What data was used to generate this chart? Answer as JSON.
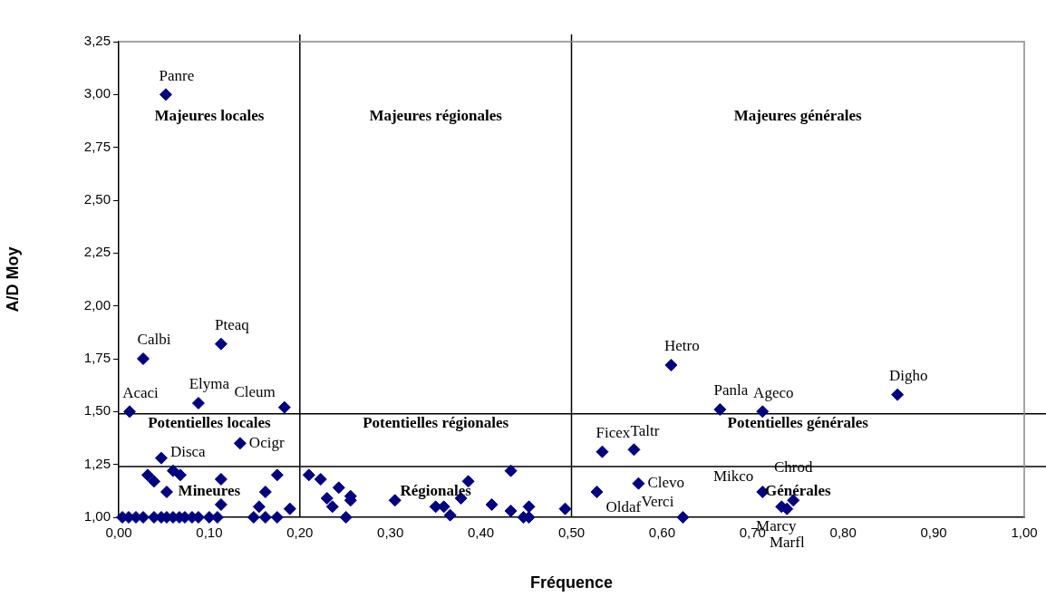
{
  "chart_data": {
    "type": "scatter",
    "xlabel": "Fréquence",
    "ylabel": "A/D Moy",
    "x": [
      0.052,
      0.012,
      0.027,
      0.113,
      0.088,
      0.183,
      0.134,
      0.047,
      0.032,
      0.039,
      0.053,
      0.06,
      0.068,
      0.113,
      0.113,
      0.175,
      0.162,
      0.155,
      0.189,
      0.004,
      0.011,
      0.019,
      0.027,
      0.039,
      0.047,
      0.053,
      0.06,
      0.067,
      0.073,
      0.081,
      0.088,
      0.1,
      0.109,
      0.149,
      0.162,
      0.175,
      0.21,
      0.223,
      0.23,
      0.236,
      0.243,
      0.256,
      0.256,
      0.251,
      0.305,
      0.35,
      0.359,
      0.366,
      0.378,
      0.386,
      0.412,
      0.433,
      0.433,
      0.447,
      0.453,
      0.453,
      0.493,
      0.528,
      0.534,
      0.569,
      0.574,
      0.623,
      0.61,
      0.664,
      0.711,
      0.86,
      0.711,
      0.732,
      0.738,
      0.745
    ],
    "series": [
      {
        "color": "#000080",
        "values": [
          3.0,
          1.5,
          1.75,
          1.82,
          1.54,
          1.52,
          1.35,
          1.28,
          1.2,
          1.17,
          1.12,
          1.22,
          1.2,
          1.18,
          1.06,
          1.2,
          1.12,
          1.05,
          1.04,
          1.0,
          1.0,
          1.0,
          1.0,
          1.0,
          1.0,
          1.0,
          1.0,
          1.0,
          1.0,
          1.0,
          1.0,
          1.0,
          1.0,
          1.0,
          1.0,
          1.0,
          1.2,
          1.18,
          1.09,
          1.05,
          1.14,
          1.1,
          1.08,
          1.0,
          1.08,
          1.05,
          1.05,
          1.01,
          1.09,
          1.17,
          1.06,
          1.22,
          1.03,
          1.0,
          1.0,
          1.05,
          1.04,
          1.12,
          1.31,
          1.32,
          1.16,
          1.0,
          1.72,
          1.51,
          1.5,
          1.58,
          1.12,
          1.05,
          1.04,
          1.08
        ],
        "value_labels": [
          "Panre",
          "Acaci",
          "Calbi",
          "Pteaq",
          "Elyma",
          "Cleum",
          "Ocigr",
          "Disca",
          null,
          null,
          null,
          null,
          null,
          null,
          null,
          null,
          null,
          null,
          null,
          null,
          null,
          null,
          null,
          null,
          null,
          null,
          null,
          null,
          null,
          null,
          null,
          null,
          null,
          null,
          null,
          null,
          null,
          null,
          null,
          null,
          null,
          null,
          null,
          null,
          null,
          null,
          null,
          null,
          null,
          null,
          null,
          null,
          null,
          null,
          null,
          null,
          null,
          "Oldaf",
          "Ficex",
          "Taltr",
          "Clevo",
          "Verci",
          "Hetro",
          "Panla",
          "Ageco",
          "Digho",
          "Mikco",
          "Marcy",
          "Marfl",
          "Chrod"
        ]
      }
    ],
    "xlim": [
      0,
      1
    ],
    "xticks": [
      {
        "value": 0,
        "label": "0,00"
      },
      {
        "value": 0.1,
        "label": "0,10"
      },
      {
        "value": 0.2,
        "label": "0,20"
      },
      {
        "value": 0.3,
        "label": "0,30"
      },
      {
        "value": 0.4,
        "label": "0,40"
      },
      {
        "value": 0.5,
        "label": "0,50"
      },
      {
        "value": 0.6,
        "label": "0,60"
      },
      {
        "value": 0.7,
        "label": "0,70"
      },
      {
        "value": 0.8,
        "label": "0,80"
      },
      {
        "value": 0.9,
        "label": "0,90"
      },
      {
        "value": 1,
        "label": "1,00"
      }
    ],
    "ylim": [
      1,
      3.25
    ],
    "yticks": [
      {
        "value": 1,
        "label": "1,00"
      },
      {
        "value": 1.25,
        "label": "1,25"
      },
      {
        "value": 1.5,
        "label": "1,50"
      },
      {
        "value": 1.75,
        "label": "1,75"
      },
      {
        "value": 2,
        "label": "2,00"
      },
      {
        "value": 2.25,
        "label": "2,25"
      },
      {
        "value": 2.5,
        "label": "2,50"
      },
      {
        "value": 2.75,
        "label": "2,75"
      },
      {
        "value": 3,
        "label": "3,00"
      },
      {
        "value": 3.25,
        "label": "3,25"
      }
    ],
    "ref_lines": [
      {
        "axis": "x",
        "value": 0.2,
        "color": "#000000"
      },
      {
        "axis": "x",
        "value": 0.5,
        "color": "#000000"
      },
      {
        "axis": "y",
        "value": 1.49,
        "color": "#000000"
      },
      {
        "axis": "y",
        "value": 1.24,
        "color": "#000000"
      }
    ],
    "annotations": [
      "Majeures locales",
      "Majeures régionales",
      "Majeures générales",
      "Potentielles locales",
      "Potentielles régionales",
      "Potentielles générales",
      "Mineures",
      "Régionales",
      "Générales"
    ],
    "grid": false,
    "legend": false,
    "marker": "diamond"
  }
}
